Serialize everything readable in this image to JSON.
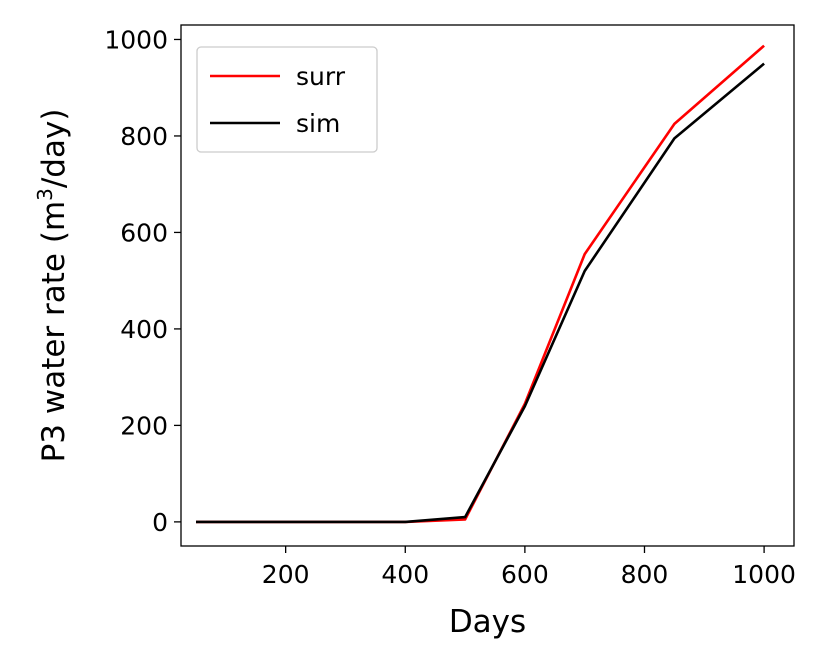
{
  "chart_data": {
    "type": "line",
    "title": "",
    "xlabel": "Days",
    "ylabel_main": "P3 water rate (m",
    "ylabel_sup": "3",
    "ylabel_tail": "/day)",
    "xlim": [
      25,
      1050
    ],
    "ylim": [
      -50,
      1030
    ],
    "xticks": [
      200,
      400,
      600,
      800,
      1000
    ],
    "yticks": [
      0,
      200,
      400,
      600,
      800,
      1000
    ],
    "grid": false,
    "legend_position": "top-left",
    "series": [
      {
        "name": "surr",
        "color": "#ff0000",
        "x": [
          50,
          400,
          500,
          600,
          700,
          850,
          1000
        ],
        "y": [
          0,
          0,
          5,
          245,
          555,
          825,
          987
        ]
      },
      {
        "name": "sim",
        "color": "#000000",
        "x": [
          50,
          400,
          500,
          600,
          700,
          850,
          1000
        ],
        "y": [
          0,
          0,
          10,
          240,
          520,
          795,
          950
        ]
      }
    ]
  }
}
